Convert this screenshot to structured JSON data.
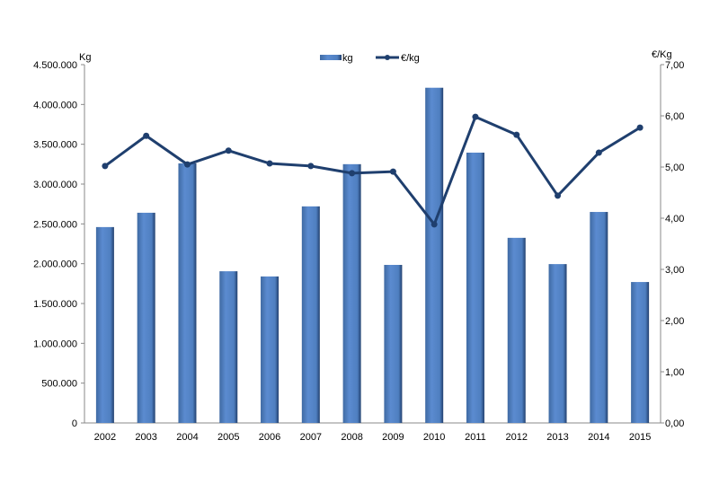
{
  "chart_data": {
    "type": "bar+line",
    "title": "",
    "categories": [
      "2002",
      "2003",
      "2004",
      "2005",
      "2006",
      "2007",
      "2008",
      "2009",
      "2010",
      "2011",
      "2012",
      "2013",
      "2014",
      "2015"
    ],
    "series": [
      {
        "name": "kg",
        "type": "bar",
        "axis": "left",
        "color": "#4f81bd",
        "values": [
          2460000,
          2640000,
          3260000,
          1905000,
          1840000,
          2720000,
          3250000,
          1985000,
          4210000,
          3395000,
          2325000,
          1995000,
          2650000,
          1770000
        ]
      },
      {
        "name": "€/kg",
        "type": "line",
        "axis": "right",
        "color": "#1f3f6e",
        "values": [
          5.02,
          5.61,
          5.05,
          5.32,
          5.07,
          5.02,
          4.88,
          4.91,
          3.88,
          5.98,
          5.63,
          4.44,
          5.28,
          5.77
        ]
      }
    ],
    "ylabel": "Kg",
    "y2label": "€/Kg",
    "ylim": [
      0,
      4500000
    ],
    "y2lim": [
      0,
      7
    ],
    "yticks": [
      "0",
      "500.000",
      "1.000.000",
      "1.500.000",
      "2.000.000",
      "2.500.000",
      "3.000.000",
      "3.500.000",
      "4.000.000",
      "4.500.000"
    ],
    "y2ticks": [
      "0,00",
      "1,00",
      "2,00",
      "3,00",
      "4,00",
      "5,00",
      "6,00",
      "7,00"
    ],
    "legend": {
      "position": "top-center",
      "entries": [
        "kg",
        "€/kg"
      ]
    },
    "grid": false
  }
}
